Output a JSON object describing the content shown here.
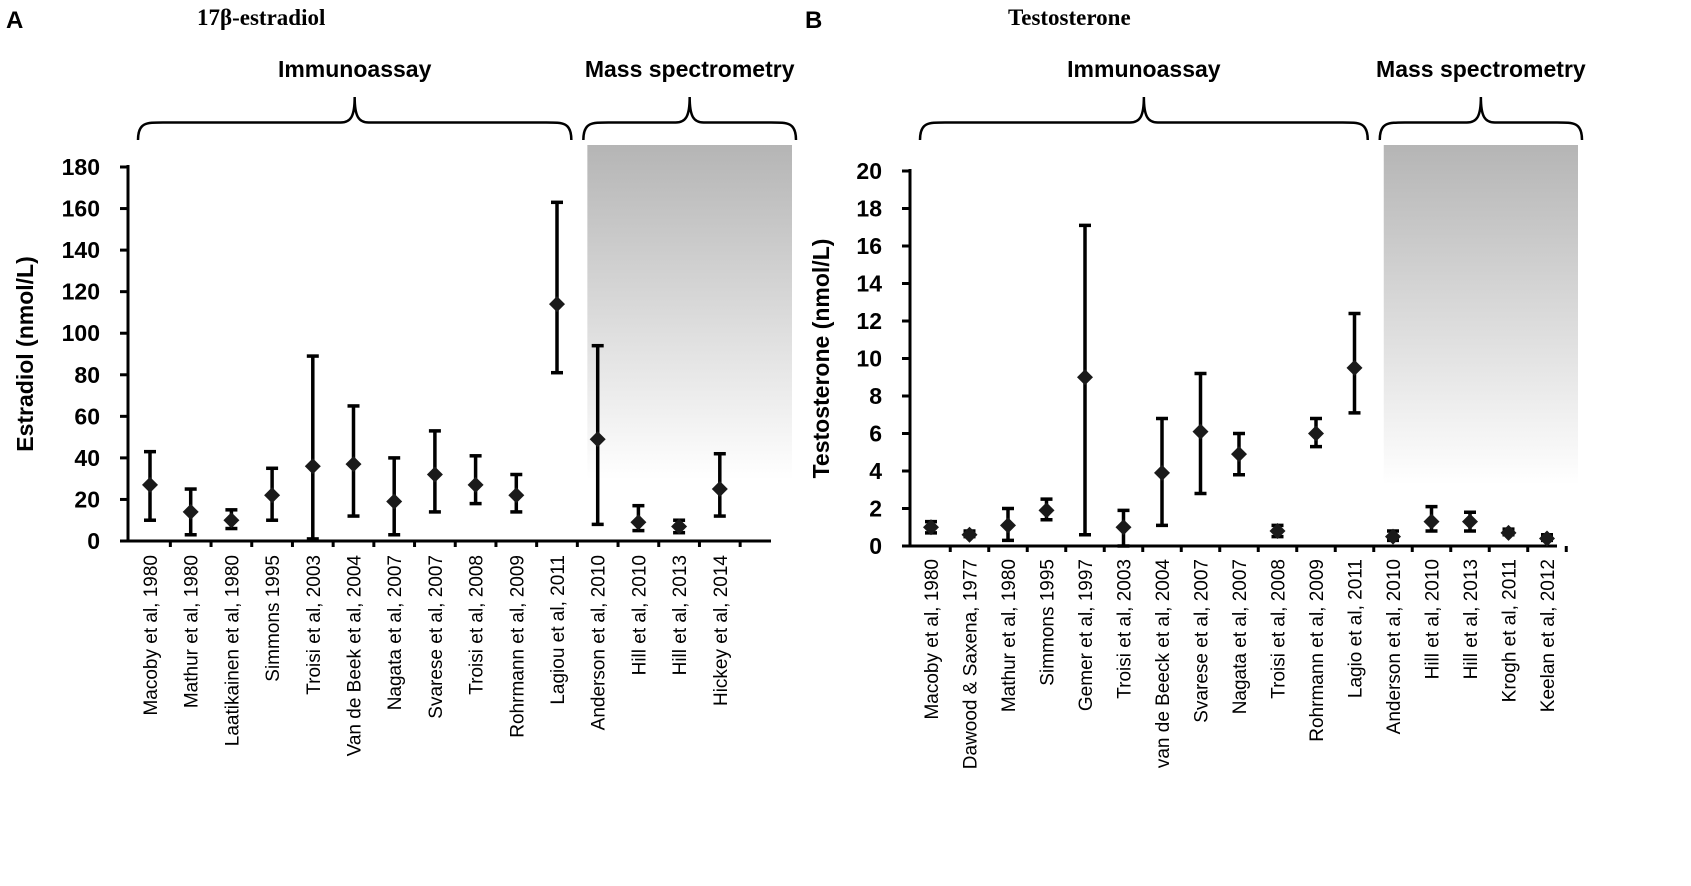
{
  "chart_data": [
    {
      "type": "scatter",
      "panel": "A",
      "title": "17β-estradiol",
      "ylabel": "Estradiol (nmol/L)",
      "xlabel": "",
      "ylim": [
        0,
        180
      ],
      "yticks": [
        0,
        20,
        40,
        60,
        80,
        100,
        120,
        140,
        160,
        180
      ],
      "groups": [
        {
          "label": "Immunoassay",
          "categories": [
            0,
            10
          ],
          "shaded": false
        },
        {
          "label": "Mass spectrometry",
          "categories": [
            11,
            14
          ],
          "shaded": true
        }
      ],
      "categories": [
        "Macoby et al, 1980",
        "Mathur et al, 1980",
        "Laatikainen et al, 1980",
        "Simmons 1995",
        "Troisi et al, 2003",
        "Van de Beek et al, 2004",
        "Nagata et al, 2007",
        "Svarese et al, 2007",
        "Troisi et al, 2008",
        "Rohrmann et al, 2009",
        "Lagiou et al, 2011",
        "Anderson et al, 2010",
        "Hill et al, 2010",
        "Hill et al, 2013",
        "Hickey et al, 2014"
      ],
      "series": [
        {
          "name": "mean",
          "values": [
            27,
            14,
            10,
            22,
            36,
            37,
            19,
            32,
            27,
            22,
            114,
            49,
            9,
            7,
            25
          ]
        },
        {
          "name": "lower",
          "values": [
            10,
            3,
            6,
            10,
            1,
            12,
            3,
            14,
            18,
            14,
            81,
            8,
            5,
            4,
            12
          ]
        },
        {
          "name": "upper",
          "values": [
            43,
            25,
            15,
            35,
            89,
            65,
            40,
            53,
            41,
            32,
            163,
            94,
            17,
            10,
            42
          ]
        }
      ]
    },
    {
      "type": "scatter",
      "panel": "B",
      "title": "Testosterone",
      "ylabel": "Testosterone (nmol/L)",
      "xlabel": "",
      "ylim": [
        0,
        20
      ],
      "yticks": [
        0,
        2,
        4,
        6,
        8,
        10,
        12,
        14,
        16,
        18,
        20
      ],
      "groups": [
        {
          "label": "Immunoassay",
          "categories": [
            0,
            11
          ],
          "shaded": false
        },
        {
          "label": "Mass spectrometry",
          "categories": [
            12,
            16
          ],
          "shaded": true
        }
      ],
      "categories": [
        "Macoby et al, 1980",
        "Dawood & Saxena, 1977",
        "Mathur et al, 1980",
        "Simmons 1995",
        "Gemer et al, 1997",
        "Troisi et al, 2003",
        "van de Beeck et al, 2004",
        "Svarese et al, 2007",
        "Nagata et al, 2007",
        "Troisi et al, 2008",
        "Rohrmann et al, 2009",
        "Lagio et al, 2011",
        "Anderson et al, 2010",
        "Hill et al, 2010",
        "Hill et al, 2013",
        "Krogh et al, 2011",
        "Keelan et al, 2012"
      ],
      "series": [
        {
          "name": "mean",
          "values": [
            1.0,
            0.6,
            1.1,
            1.9,
            9.0,
            1.0,
            3.9,
            6.1,
            4.9,
            0.8,
            6.0,
            9.5,
            0.5,
            1.3,
            1.3,
            0.7,
            0.4
          ]
        },
        {
          "name": "lower",
          "values": [
            0.7,
            0.5,
            0.3,
            1.4,
            0.6,
            0.0,
            1.1,
            2.8,
            3.8,
            0.5,
            5.3,
            7.1,
            0.3,
            0.8,
            0.8,
            0.6,
            0.3
          ]
        },
        {
          "name": "upper",
          "values": [
            1.3,
            0.8,
            2.0,
            2.5,
            17.1,
            1.9,
            6.8,
            9.2,
            6.0,
            1.1,
            6.8,
            12.4,
            0.8,
            2.1,
            1.8,
            0.9,
            0.6
          ]
        }
      ]
    }
  ]
}
